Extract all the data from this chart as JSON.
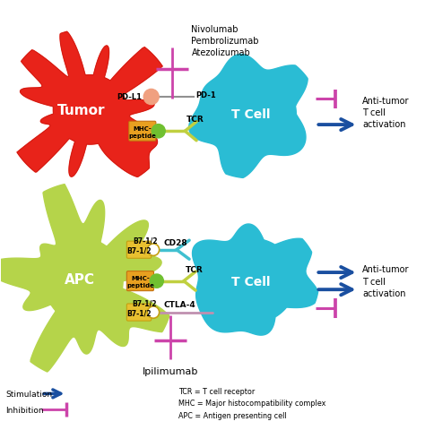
{
  "bg_color": "#ffffff",
  "tumor_color": "#e8231a",
  "tumor_dark": "#cc1a10",
  "tcell_color": "#2abcd4",
  "apc_color": "#b5d44a",
  "mhc_color": "#e8a020",
  "mhc_dark": "#c47010",
  "b71_color": "#e8c030",
  "b71_dark": "#c4a010",
  "pdl1_color": "#f0a080",
  "tcr_color": "#c0d040",
  "ctla4_color": "#c090b0",
  "cd28_color": "#40c0d0",
  "inhibit_color": "#cc44aa",
  "arrow_color": "#1a4fa0",
  "green_ball": "#70c030",
  "nivolumab_text": "Nivolumab\nPembrolizumab\nAtezolizumab",
  "ipilimumab_text": "Ipilimumab",
  "tumor_label": "Tumor",
  "tcell_label1": "T Cell",
  "apc_label": "APC",
  "tcell_label2": "T Cell",
  "antitumor1": "Anti-tumor\nT cell\nactivation",
  "antitumor2": "Anti-tumor\nT cell\nactivation",
  "stimulation": "Stimulation",
  "inhibition": "Inhibition",
  "legend_tcr": "TCR = T cell receptor",
  "legend_mhc": "MHC = Major histocompatibility complex",
  "legend_apc": "APC = Antigen presenting cell"
}
